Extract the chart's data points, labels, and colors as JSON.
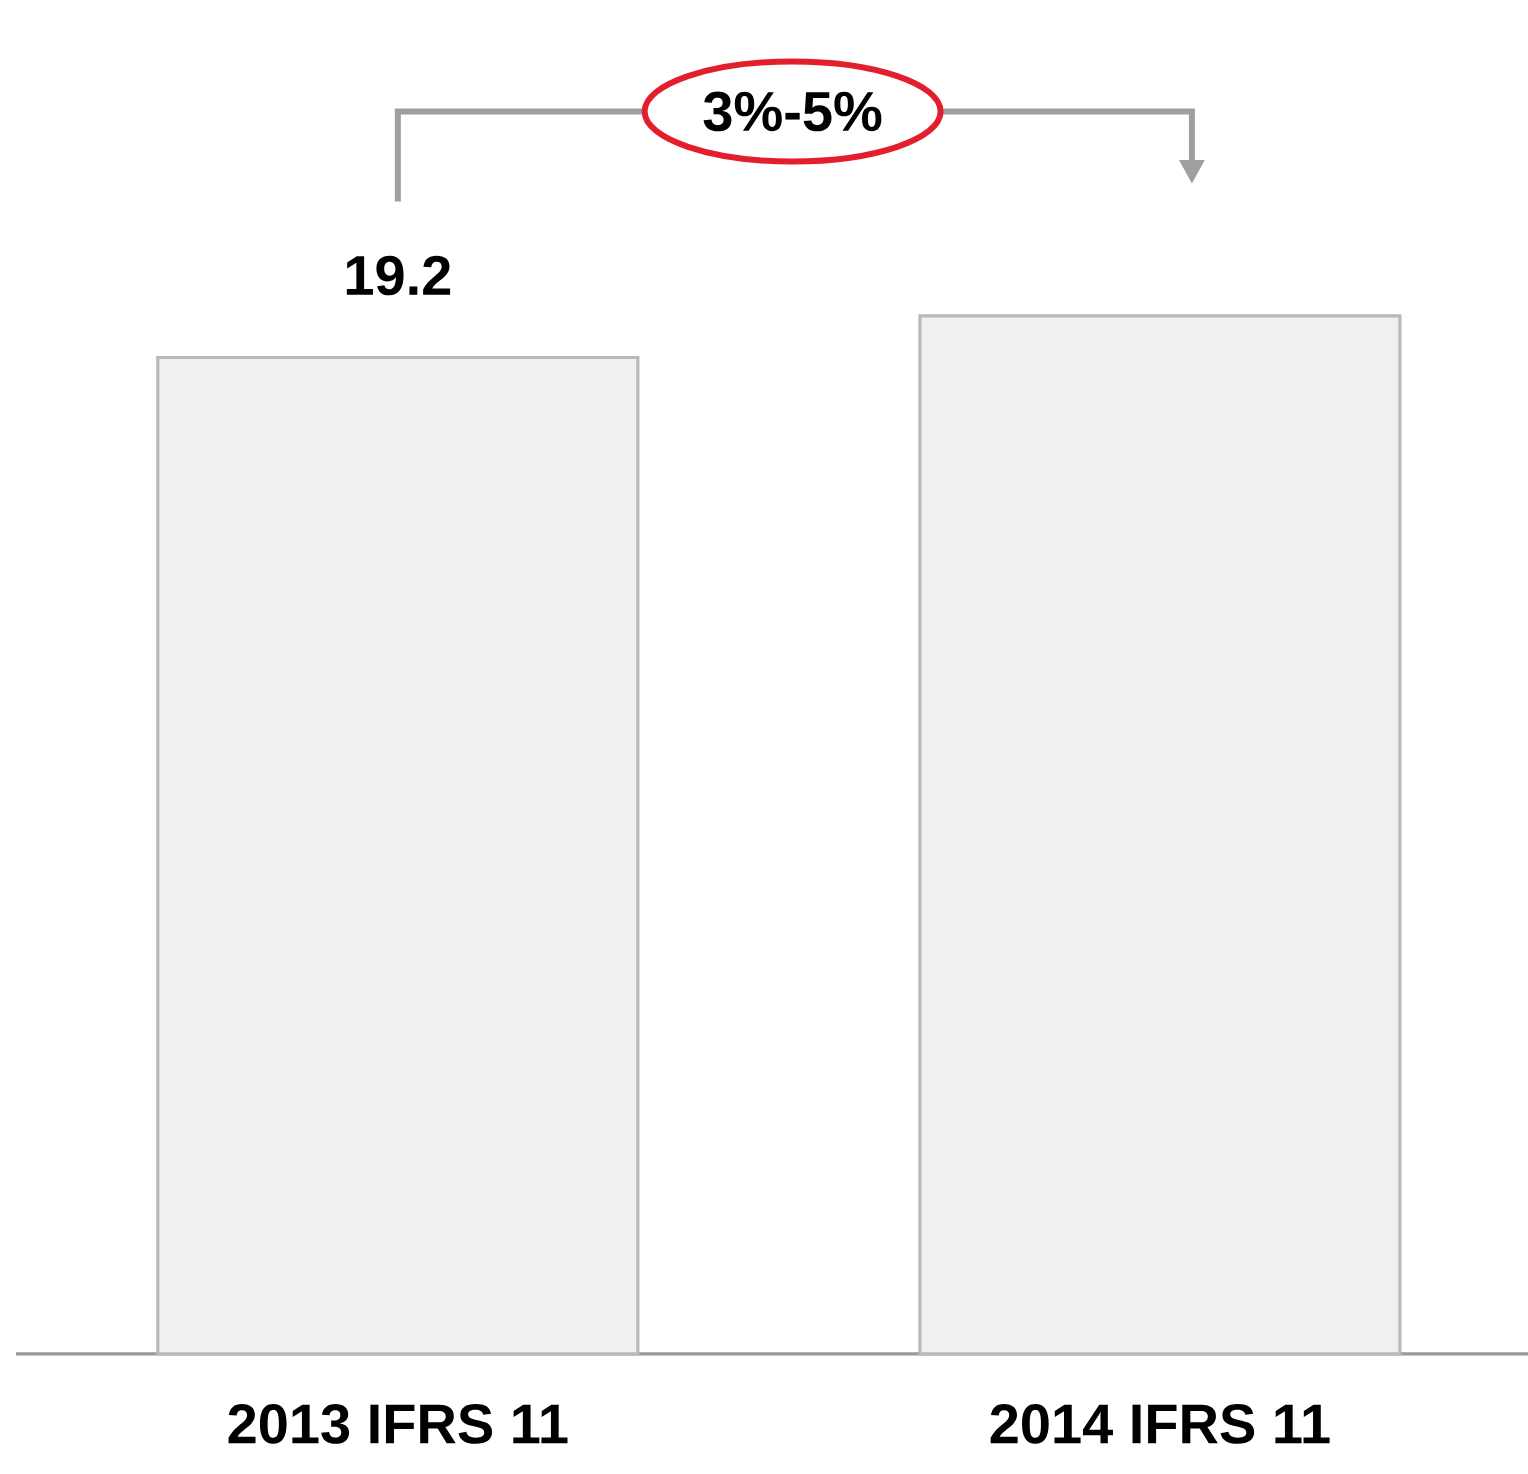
{
  "chart_data": {
    "type": "bar",
    "categories": [
      "2013 IFRS 11",
      "2014 IFRS 11"
    ],
    "values": [
      19.2,
      20.0
    ],
    "value_labels": [
      "19.2",
      null
    ],
    "color": "#f0f0f0",
    "annotations": [
      "3%-5%"
    ]
  }
}
